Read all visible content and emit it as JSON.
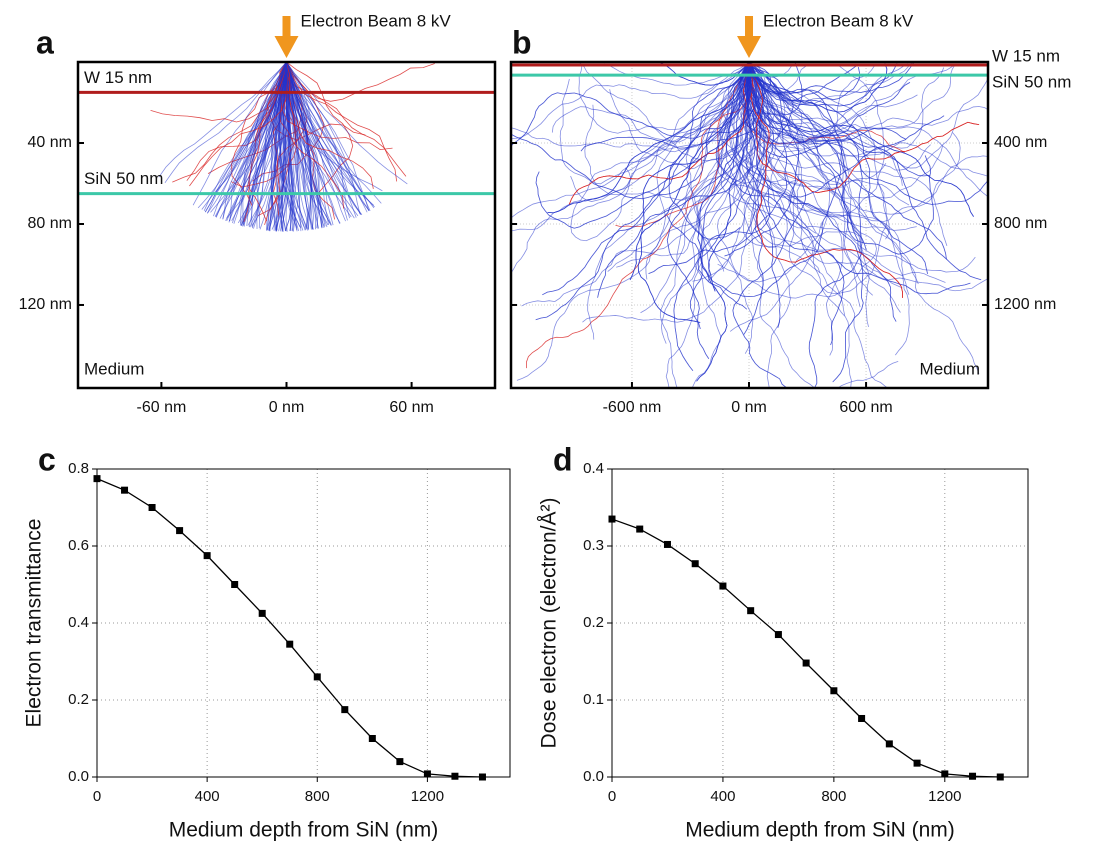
{
  "chart_data": [
    {
      "type": "simulation",
      "label": "a",
      "annotation": "Electron Beam 8 kV",
      "region_label": "Medium",
      "xlim": [
        -100,
        100
      ],
      "ylim": [
        0,
        161
      ],
      "xticks": [
        {
          "value": -60,
          "label": "-60 nm"
        },
        {
          "value": 0,
          "label": "0 nm"
        },
        {
          "value": 60,
          "label": "60 nm"
        }
      ],
      "yticks": [
        {
          "value": 40,
          "label": "40 nm"
        },
        {
          "value": 80,
          "label": "80 nm"
        },
        {
          "value": 120,
          "label": "120 nm"
        }
      ],
      "layers": [
        {
          "label": "W 15 nm",
          "depth": 15,
          "color": "#b01c1c"
        },
        {
          "label": "SiN 50 nm",
          "depth": 65,
          "color": "#3cc8a8"
        }
      ],
      "grid": false
    },
    {
      "type": "simulation",
      "label": "b",
      "annotation": "Electron Beam 8 kV",
      "region_label": "Medium",
      "xlim": [
        -1220,
        1225
      ],
      "ylim": [
        0,
        1610
      ],
      "xticks": [
        {
          "value": -600,
          "label": "-600 nm"
        },
        {
          "value": 0,
          "label": "0 nm"
        },
        {
          "value": 600,
          "label": "600 nm"
        }
      ],
      "yticks": [
        {
          "value": 400,
          "label": "400 nm"
        },
        {
          "value": 800,
          "label": "800 nm"
        },
        {
          "value": 1200,
          "label": "1200 nm"
        }
      ],
      "layers": [
        {
          "label": "W 15 nm",
          "depth": 15,
          "color": "#b01c1c"
        },
        {
          "label": "SiN 50 nm",
          "depth": 65,
          "color": "#3cc8a8"
        }
      ],
      "grid": true
    },
    {
      "type": "line",
      "label": "c",
      "x_label": "Medium depth from SiN (nm)",
      "y_label": "Electron transmittance",
      "x": [
        0,
        100,
        200,
        300,
        400,
        500,
        600,
        700,
        800,
        900,
        1000,
        1100,
        1200,
        1300,
        1400
      ],
      "values": [
        0.775,
        0.745,
        0.7,
        0.64,
        0.575,
        0.5,
        0.425,
        0.345,
        0.26,
        0.175,
        0.1,
        0.04,
        0.008,
        0.002,
        0.0
      ],
      "color": "#000000",
      "xlim": [
        0,
        1500
      ],
      "ylim": [
        0,
        0.8
      ],
      "xticks": [
        0,
        400,
        800,
        1200
      ],
      "yticks": [
        {
          "value": 0,
          "label": "0.0"
        },
        0.2,
        0.4,
        0.6,
        0.8
      ],
      "grid": true
    },
    {
      "type": "line",
      "label": "d",
      "x_label": "Medium depth from SiN (nm)",
      "y_label": "Dose electron (electron/Å²)",
      "x": [
        0,
        100,
        200,
        300,
        400,
        500,
        600,
        700,
        800,
        900,
        1000,
        1100,
        1200,
        1300,
        1400
      ],
      "values": [
        0.335,
        0.322,
        0.302,
        0.277,
        0.248,
        0.216,
        0.185,
        0.148,
        0.112,
        0.076,
        0.043,
        0.018,
        0.004,
        0.001,
        0.0
      ],
      "color": "#000000",
      "xlim": [
        0,
        1500
      ],
      "ylim": [
        0,
        0.4
      ],
      "xticks": [
        0,
        400,
        800,
        1200
      ],
      "yticks": [
        {
          "value": 0,
          "label": "0.0"
        },
        0.1,
        0.2,
        0.3,
        0.4
      ],
      "grid": true
    }
  ]
}
